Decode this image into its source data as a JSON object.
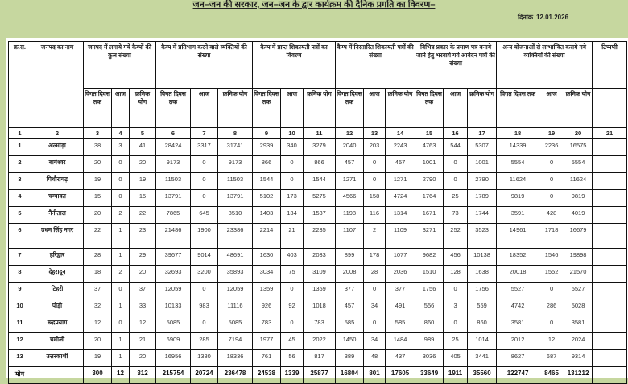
{
  "title": "जन–जन की सरकार, जन–जन के द्वार कार्यक्रम की दैनिक प्रगति का विवरण–",
  "date_label": "दिनांक",
  "date": "12.01.2026",
  "headers": {
    "sn": "क्र.स.",
    "district": "जनपद का नाम",
    "groups": [
      "जनपद में लगाये गये कैम्पों की कुल संख्या",
      "कैम्प में प्रतिभाग करने वाले व्यक्तियों की संख्या",
      "कैम्प में प्राप्त शिकायती पत्रों का विवरण",
      "कैम्प में निस्तारित शिकायती पत्रों की संख्या",
      "विभिन्न प्रकार के प्रमाण पत्र बनाये जाने हेतु भरवाये गये आवेदन पत्रों की संख्या",
      "अन्य योजनाओं से लाभान्वित कराये गये व्यक्तियों की संख्या"
    ],
    "remarks": "टिप्पणी",
    "sub": [
      "विगत दिवस तक",
      "आज",
      "क्रमिक योग"
    ],
    "col_numbers": [
      "1",
      "2",
      "3",
      "4",
      "5",
      "6",
      "7",
      "8",
      "9",
      "10",
      "11",
      "12",
      "13",
      "14",
      "15",
      "16",
      "17",
      "18",
      "19",
      "20",
      "21"
    ]
  },
  "rows": [
    {
      "sn": "1",
      "district": "अल्मोड़ा",
      "values": [
        "38",
        "3",
        "41",
        "28424",
        "3317",
        "31741",
        "2939",
        "340",
        "3279",
        "2040",
        "203",
        "2243",
        "4763",
        "544",
        "5307",
        "14339",
        "2236",
        "16575"
      ]
    },
    {
      "sn": "2",
      "district": "बागेश्वर",
      "values": [
        "20",
        "0",
        "20",
        "9173",
        "0",
        "9173",
        "866",
        "0",
        "866",
        "457",
        "0",
        "457",
        "1001",
        "0",
        "1001",
        "5554",
        "0",
        "5554"
      ]
    },
    {
      "sn": "3",
      "district": "पिथौरागढ़",
      "values": [
        "19",
        "0",
        "19",
        "11503",
        "0",
        "11503",
        "1544",
        "0",
        "1544",
        "1271",
        "0",
        "1271",
        "2790",
        "0",
        "2790",
        "11624",
        "0",
        "11624"
      ]
    },
    {
      "sn": "4",
      "district": "चम्पावत",
      "values": [
        "15",
        "0",
        "15",
        "13791",
        "0",
        "13791",
        "5102",
        "173",
        "5275",
        "4566",
        "158",
        "4724",
        "1764",
        "25",
        "1789",
        "9819",
        "0",
        "9819"
      ]
    },
    {
      "sn": "5",
      "district": "नैनीताल",
      "values": [
        "20",
        "2",
        "22",
        "7865",
        "645",
        "8510",
        "1403",
        "134",
        "1537",
        "1198",
        "116",
        "1314",
        "1671",
        "73",
        "1744",
        "3591",
        "428",
        "4019"
      ]
    },
    {
      "sn": "6",
      "district": "उधम सिंह नगर",
      "values": [
        "22",
        "1",
        "23",
        "21486",
        "1900",
        "23386",
        "2214",
        "21",
        "2235",
        "1107",
        "2",
        "1109",
        "3271",
        "252",
        "3523",
        "14961",
        "1718",
        "16679"
      ]
    },
    {
      "sn": "7",
      "district": "हरिद्वार",
      "values": [
        "28",
        "1",
        "29",
        "39677",
        "9014",
        "48691",
        "1630",
        "403",
        "2033",
        "899",
        "178",
        "1077",
        "9682",
        "456",
        "10138",
        "18352",
        "1546",
        "19898"
      ]
    },
    {
      "sn": "8",
      "district": "देहरादून",
      "values": [
        "18",
        "2",
        "20",
        "32693",
        "3200",
        "35893",
        "3034",
        "75",
        "3109",
        "2008",
        "28",
        "2036",
        "1510",
        "128",
        "1638",
        "20018",
        "1552",
        "21570"
      ]
    },
    {
      "sn": "9",
      "district": "टिहरी",
      "values": [
        "37",
        "0",
        "37",
        "12059",
        "0",
        "12059",
        "1359",
        "0",
        "1359",
        "377",
        "0",
        "377",
        "1756",
        "0",
        "1756",
        "5527",
        "0",
        "5527"
      ]
    },
    {
      "sn": "10",
      "district": "पौड़ी",
      "values": [
        "32",
        "1",
        "33",
        "10133",
        "983",
        "11116",
        "926",
        "92",
        "1018",
        "457",
        "34",
        "491",
        "556",
        "3",
        "559",
        "4742",
        "286",
        "5028"
      ]
    },
    {
      "sn": "11",
      "district": "रूद्रप्रयाग",
      "values": [
        "12",
        "0",
        "12",
        "5085",
        "0",
        "5085",
        "783",
        "0",
        "783",
        "585",
        "0",
        "585",
        "860",
        "0",
        "860",
        "3581",
        "0",
        "3581"
      ]
    },
    {
      "sn": "12",
      "district": "चमोली",
      "values": [
        "20",
        "1",
        "21",
        "6909",
        "285",
        "7194",
        "1977",
        "45",
        "2022",
        "1450",
        "34",
        "1484",
        "989",
        "25",
        "1014",
        "2012",
        "12",
        "2024"
      ]
    },
    {
      "sn": "13",
      "district": "उत्तरकाशी",
      "values": [
        "19",
        "1",
        "20",
        "16956",
        "1380",
        "18336",
        "761",
        "56",
        "817",
        "389",
        "48",
        "437",
        "3036",
        "405",
        "3441",
        "8627",
        "687",
        "9314"
      ]
    }
  ],
  "total": {
    "label": "योग",
    "values": [
      "300",
      "12",
      "312",
      "215754",
      "20724",
      "236478",
      "24538",
      "1339",
      "25877",
      "16804",
      "801",
      "17605",
      "33649",
      "1911",
      "35560",
      "122747",
      "8465",
      "131212"
    ]
  }
}
